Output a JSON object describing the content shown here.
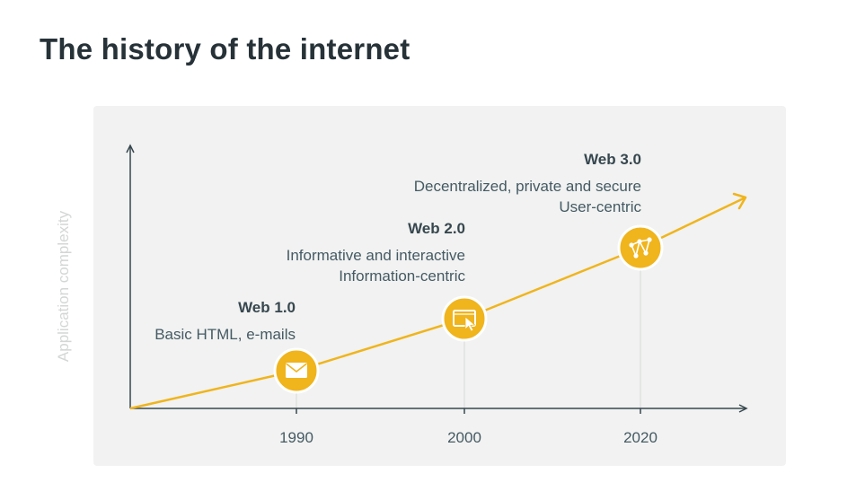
{
  "page": {
    "title": "The history of the internet"
  },
  "diagram": {
    "y_axis_label": "Application complexity",
    "eras": [
      {
        "title": "Web 1.0",
        "lines": [
          "Basic HTML, e-mails"
        ],
        "year": "1990",
        "icon": "envelope-icon"
      },
      {
        "title": "Web 2.0",
        "lines": [
          "Informative and interactive",
          "Information-centric"
        ],
        "year": "2000",
        "icon": "monitor-cursor-icon"
      },
      {
        "title": "Web 3.0",
        "lines": [
          "Decentralized, private and secure",
          "User-centric"
        ],
        "year": "2020",
        "icon": "network-nodes-icon"
      }
    ]
  },
  "colors": {
    "accent": "#f0b41c",
    "axis": "#37474f",
    "panel": "#f1f2f1",
    "title": "#263238"
  }
}
